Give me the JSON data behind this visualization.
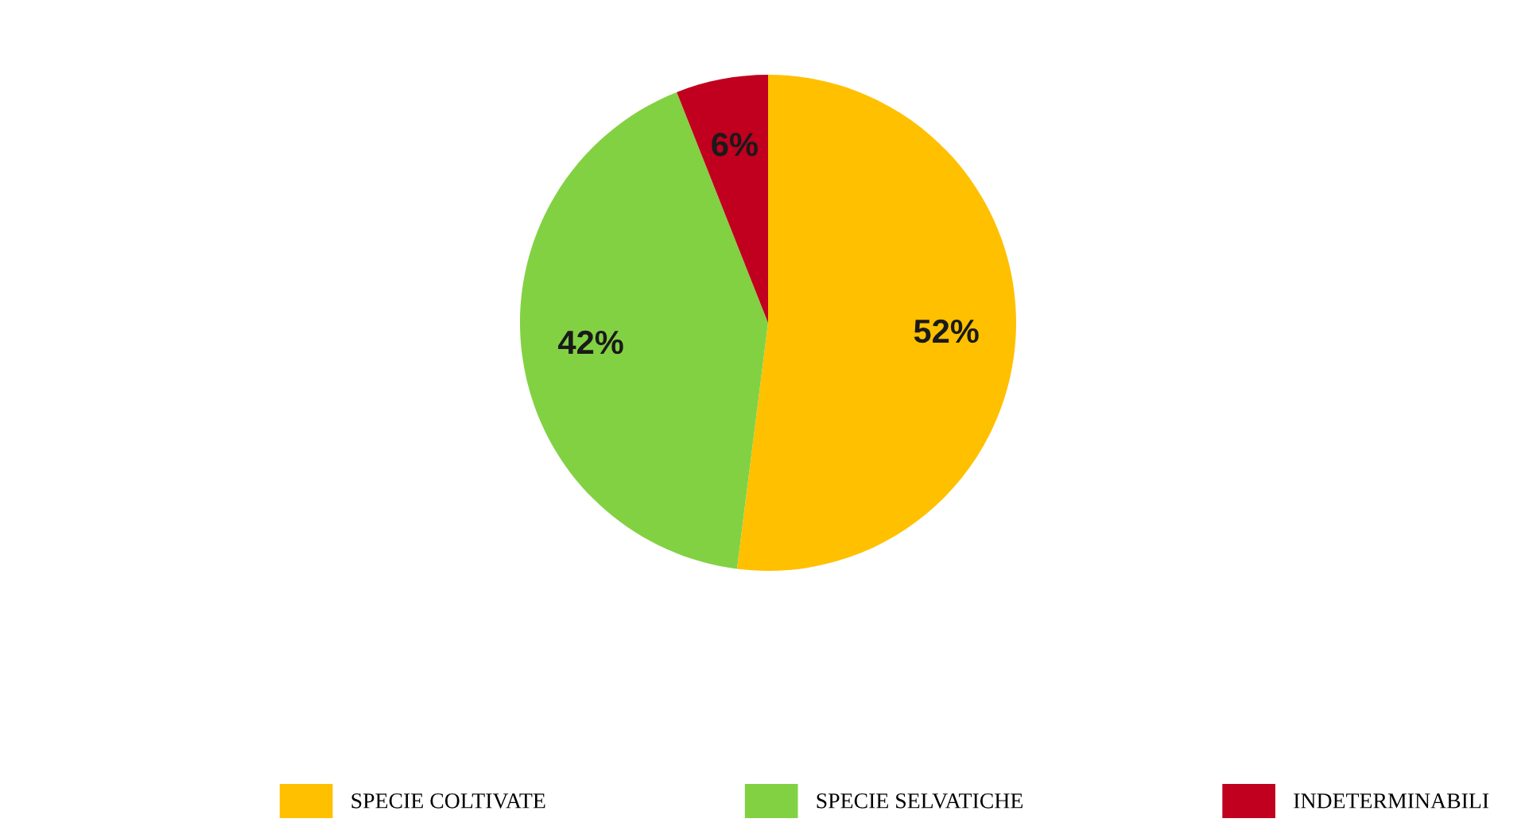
{
  "chart_data": {
    "type": "pie",
    "categories": [
      "SPECIE COLTIVATE",
      "SPECIE SELVATICHE",
      "INDETERMINABILI"
    ],
    "values": [
      52,
      42,
      6
    ],
    "colors": [
      "#ffc000",
      "#82d143",
      "#c0001e"
    ],
    "value_labels": [
      "52%",
      "42%",
      "6%"
    ],
    "legend": "bottom"
  }
}
